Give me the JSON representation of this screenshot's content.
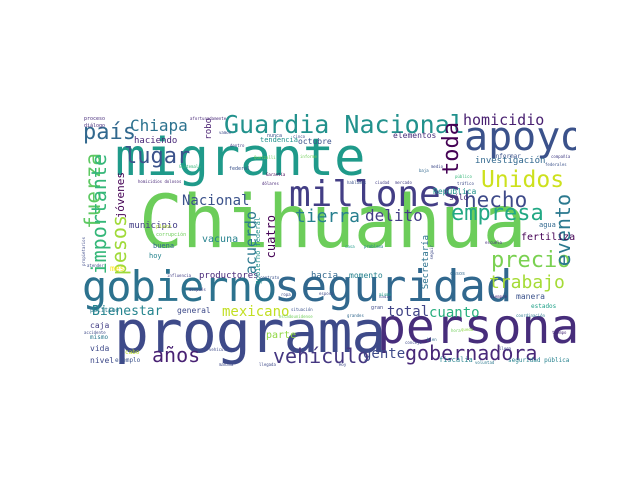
{
  "words": [
    {
      "text": "Chihuahua",
      "color": "#6ccd5a"
    },
    {
      "text": "migrante",
      "color": "#1f9a8a"
    },
    {
      "text": "programa",
      "color": "#3e4a89"
    },
    {
      "text": "persona",
      "color": "#472d7b"
    },
    {
      "text": "seguridad",
      "color": "#31688e"
    },
    {
      "text": "gobierno",
      "color": "#2c728e"
    },
    {
      "text": "millones",
      "color": "#433e85"
    },
    {
      "text": "apoyo",
      "color": "#3b528b"
    },
    {
      "text": "Guardia Nacional",
      "color": "#21918c"
    },
    {
      "text": "Unidos",
      "color": "#cde11d"
    },
    {
      "text": "hecho",
      "color": "#3e4a89"
    },
    {
      "text": "empresa",
      "color": "#22a884"
    },
    {
      "text": "precio",
      "color": "#7ad151"
    },
    {
      "text": "trabajo",
      "color": "#a5db36"
    },
    {
      "text": "gobernadora",
      "color": "#482878"
    },
    {
      "text": "vehículo",
      "color": "#453781"
    },
    {
      "text": "años",
      "color": "#482173"
    },
    {
      "text": "lugar",
      "color": "#3b528b"
    },
    {
      "text": "país",
      "color": "#31688e"
    },
    {
      "text": "Chiapa",
      "color": "#2c728e"
    },
    {
      "text": "homicidio",
      "color": "#481f70"
    },
    {
      "text": "tierra",
      "color": "#277f8e"
    },
    {
      "text": "delito",
      "color": "#433e85"
    },
    {
      "text": "evento",
      "color": "#2a788e"
    },
    {
      "text": "toda",
      "color": "#440154"
    },
    {
      "text": "fuerza",
      "color": "#5ec962"
    },
    {
      "text": "importante",
      "color": "#35b779"
    },
    {
      "text": "pesos",
      "color": "#a0da39"
    },
    {
      "text": "Bienestar",
      "color": "#25848e"
    },
    {
      "text": "mexicano",
      "color": "#c2df23"
    },
    {
      "text": "Nacional",
      "color": "#3b528b"
    },
    {
      "text": "acuerdo",
      "color": "#2a788e"
    },
    {
      "text": "total",
      "color": "#414487"
    },
    {
      "text": "cuanto",
      "color": "#29af7f"
    },
    {
      "text": "gente",
      "color": "#3e4a89"
    },
    {
      "text": "jóvenes",
      "color": "#440154"
    },
    {
      "text": "cuatro",
      "color": "#440154"
    },
    {
      "text": "productores",
      "color": "#482878"
    },
    {
      "text": "hacia",
      "color": "#31688e"
    },
    {
      "text": "momento",
      "color": "#26828e"
    },
    {
      "text": "parte",
      "color": "#90d743"
    },
    {
      "text": "general",
      "color": "#3e4a89"
    },
    {
      "text": "vacuna",
      "color": "#26828e"
    },
    {
      "text": "municipio",
      "color": "#433e85"
    },
    {
      "text": "fertilizante",
      "color": "#440154"
    },
    {
      "text": "investigación",
      "color": "#31688e"
    },
    {
      "text": "República",
      "color": "#21918c"
    },
    {
      "text": "Secretaría",
      "color": "#2c728e"
    },
    {
      "text": "haciendo",
      "color": "#482878"
    },
    {
      "text": "octubre",
      "color": "#3b528b"
    },
    {
      "text": "elementos",
      "color": "#472d7b"
    },
    {
      "text": "tendencia",
      "color": "#21918c"
    },
    {
      "text": "robo",
      "color": "#481f70"
    },
    {
      "text": "caja",
      "color": "#433e85"
    },
    {
      "text": "vida",
      "color": "#3e4a89"
    },
    {
      "text": "nivel",
      "color": "#3e4a89"
    },
    {
      "text": "ejemplo",
      "color": "#3b528b"
    },
    {
      "text": "buena",
      "color": "#31688e"
    },
    {
      "text": "hoy",
      "color": "#25848e"
    },
    {
      "text": "agua",
      "color": "#31688e"
    },
    {
      "text": "sólo",
      "color": "#482878"
    },
    {
      "text": "manera",
      "color": "#3b528b"
    },
    {
      "text": "estados",
      "color": "#1fa188"
    },
    {
      "text": "fiscalía",
      "color": "#26828e"
    },
    {
      "text": "seguridad pública",
      "color": "#26828e"
    },
    {
      "text": "informar",
      "color": "#3b528b"
    },
    {
      "text": "federal",
      "color": "#3b528b"
    },
    {
      "text": "gobierno federal",
      "color": "#21918c"
    },
    {
      "text": "mes",
      "color": "#fde725"
    },
    {
      "text": "plazo",
      "color": "#b5de2b"
    },
    {
      "text": "corrupción",
      "color": "#6ece58"
    },
    {
      "text": "mismo",
      "color": "#2a788e"
    },
    {
      "text": "político",
      "color": "#2a788e"
    },
    {
      "text": "cabo",
      "color": "#bddf26"
    },
    {
      "text": "proceso",
      "color": "#472d7b"
    },
    {
      "text": "diálogo",
      "color": "#472d7b"
    },
    {
      "text": "afortunadamente",
      "color": "#482878"
    },
    {
      "text": "Garantía",
      "color": "#440154"
    },
    {
      "text": "nunca",
      "color": "#3b528b"
    },
    {
      "text": "vamos",
      "color": "#3e4a89"
    },
    {
      "text": "dentro",
      "color": "#433e85"
    },
    {
      "text": "hablamos",
      "color": "#3b528b"
    },
    {
      "text": "ciudad",
      "color": "#433e85"
    },
    {
      "text": "mercado",
      "color": "#433e85"
    },
    {
      "text": "dólares",
      "color": "#482878"
    },
    {
      "text": "baja",
      "color": "#31688e"
    },
    {
      "text": "medio",
      "color": "#3e4a89"
    },
    {
      "text": "público",
      "color": "#35b779"
    },
    {
      "text": "tráfico",
      "color": "#3e4a89"
    },
    {
      "text": "compañía",
      "color": "#433e85"
    },
    {
      "text": "federales",
      "color": "#3b528b"
    },
    {
      "text": "bien",
      "color": "#31688e"
    },
    {
      "text": "siempre",
      "color": "#482878"
    },
    {
      "text": "tiempo",
      "color": "#482878"
    },
    {
      "text": "coordinación",
      "color": "#2a788e"
    },
    {
      "text": "escuela",
      "color": "#472d7b"
    },
    {
      "text": "casa",
      "color": "#1f9a8a"
    },
    {
      "text": "problema",
      "color": "#26828e"
    },
    {
      "text": "seguir",
      "color": "#3e4a89"
    },
    {
      "text": "cinco",
      "color": "#3e4a89"
    },
    {
      "text": "informe",
      "color": "#6ece58"
    },
    {
      "text": "homicidios dolosos",
      "color": "#482878"
    },
    {
      "text": "situación",
      "color": "#3b528b"
    },
    {
      "text": "contrato",
      "color": "#3b528b"
    },
    {
      "text": "influencia",
      "color": "#433e85"
    },
    {
      "text": "después",
      "color": "#433e85"
    },
    {
      "text": "grandes",
      "color": "#31688e"
    },
    {
      "text": "gran",
      "color": "#3e4a89"
    },
    {
      "text": "voluntad",
      "color": "#2a788e"
    },
    {
      "text": "atender",
      "color": "#3e4a89"
    },
    {
      "text": "propietarios",
      "color": "#3e4a89"
    },
    {
      "text": "accidente",
      "color": "#3e4a89"
    },
    {
      "text": "Quetzalli",
      "color": "#6ece58"
    },
    {
      "text": "ropa",
      "color": "#3e4a89"
    },
    {
      "text": "estadounidense",
      "color": "#6ece58"
    },
    {
      "text": "queda",
      "color": "#8fd744"
    },
    {
      "text": "esposa",
      "color": "#3e4a89"
    },
    {
      "text": "Guatemala",
      "color": "#35b779"
    },
    {
      "text": "vehículos",
      "color": "#3e4a89"
    },
    {
      "text": "nadie",
      "color": "#3e4a89"
    },
    {
      "text": "llega",
      "color": "#3e4a89"
    },
    {
      "text": "llegada",
      "color": "#3e4a89"
    },
    {
      "text": "mismo",
      "color": "#1fa188"
    },
    {
      "text": "casos",
      "color": "#31688e"
    },
    {
      "text": "concejo",
      "color": "#3e4a89"
    },
    {
      "text": "Hoy",
      "color": "#3e4a89"
    },
    {
      "text": "mañana",
      "color": "#3e4a89"
    },
    {
      "text": "hora",
      "color": "#6ece58"
    }
  ]
}
